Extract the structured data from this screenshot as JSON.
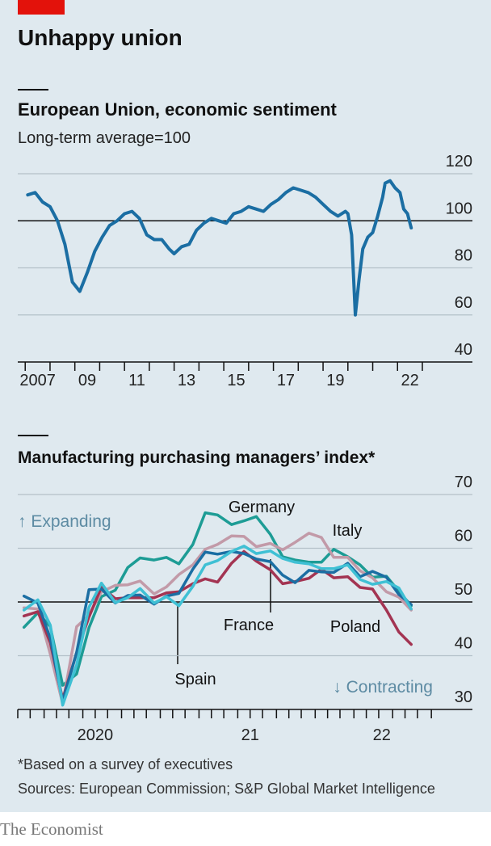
{
  "title": "Unhappy union",
  "footnote": "*Based on a survey of executives",
  "source": "Sources: European Commission; S&P Global Market Intelligence",
  "brand": "The Economist",
  "chart_data": [
    {
      "type": "line",
      "title": "European Union, economic sentiment",
      "subtitle": "Long-term average=100",
      "x": [
        2007.1,
        2007.4,
        2007.7,
        2008.0,
        2008.3,
        2008.6,
        2008.9,
        2009.2,
        2009.5,
        2009.8,
        2010.1,
        2010.4,
        2010.7,
        2011.0,
        2011.3,
        2011.6,
        2011.9,
        2012.2,
        2012.5,
        2012.8,
        2013.0,
        2013.3,
        2013.6,
        2013.9,
        2014.2,
        2014.5,
        2014.8,
        2015.1,
        2015.4,
        2015.7,
        2016.0,
        2016.3,
        2016.6,
        2016.9,
        2017.2,
        2017.5,
        2017.8,
        2018.1,
        2018.4,
        2018.7,
        2019.0,
        2019.3,
        2019.6,
        2019.9,
        2020.0,
        2020.15,
        2020.3,
        2020.45,
        2020.6,
        2020.8,
        2021.0,
        2021.2,
        2021.4,
        2021.5,
        2021.7,
        2021.9,
        2022.1,
        2022.25,
        2022.4,
        2022.55
      ],
      "values": [
        111,
        112,
        108,
        106,
        100,
        90,
        74,
        70,
        78,
        87,
        93,
        98,
        100,
        103,
        104,
        101,
        94,
        92,
        92,
        88,
        86,
        89,
        90,
        96,
        99,
        101,
        100,
        99,
        103,
        104,
        106,
        105,
        104,
        107,
        109,
        112,
        114,
        113,
        112,
        110,
        107,
        104,
        102,
        104,
        103,
        94,
        60,
        75,
        88,
        93,
        95,
        102,
        110,
        116,
        117,
        114,
        112,
        105,
        103,
        97
      ],
      "color": "#1b6ea3",
      "xlim": [
        2006.7,
        2023.0
      ],
      "ylim": [
        40,
        120
      ],
      "yticks": [
        40,
        60,
        80,
        100,
        120
      ],
      "baseline": 100,
      "xticks": [
        2007,
        2008,
        2009,
        2010,
        2011,
        2012,
        2013,
        2014,
        2015,
        2016,
        2017,
        2018,
        2019,
        2020,
        2021,
        2022,
        2023
      ],
      "xlabels": [
        {
          "value": 2007.5,
          "label": "2007"
        },
        {
          "value": 2009.5,
          "label": "09"
        },
        {
          "value": 2011.5,
          "label": "11"
        },
        {
          "value": 2013.5,
          "label": "13"
        },
        {
          "value": 2015.5,
          "label": "15"
        },
        {
          "value": 2017.5,
          "label": "17"
        },
        {
          "value": 2019.5,
          "label": "19"
        },
        {
          "value": 2022.5,
          "label": "22"
        }
      ],
      "grid": true
    },
    {
      "type": "line",
      "title": "Manufacturing purchasing managers’ index*",
      "annotations": [
        "↑ Expanding",
        "↓ Contracting"
      ],
      "x": [
        2020.04,
        2020.13,
        2020.21,
        2020.29,
        2020.38,
        2020.46,
        2020.54,
        2020.63,
        2020.71,
        2020.79,
        2020.88,
        2020.96,
        2021.04,
        2021.13,
        2021.21,
        2021.29,
        2021.38,
        2021.46,
        2021.54,
        2021.63,
        2021.71,
        2021.79,
        2021.88,
        2021.96,
        2022.04,
        2022.13,
        2022.21,
        2022.29,
        2022.38,
        2022.46,
        2022.54
      ],
      "series": [
        {
          "name": "Germany",
          "color": "#1d9c95",
          "values": [
            45.3,
            48.0,
            45.4,
            34.5,
            36.6,
            45.2,
            51.0,
            52.2,
            56.4,
            58.2,
            57.8,
            58.3,
            57.1,
            60.7,
            66.6,
            66.2,
            64.4,
            65.1,
            65.9,
            62.6,
            58.4,
            57.8,
            57.4,
            57.4,
            59.8,
            58.4,
            56.9,
            54.6,
            54.8,
            52.0,
            49.3
          ]
        },
        {
          "name": "Italy",
          "color": "#c29aa8",
          "values": [
            48.9,
            48.7,
            40.3,
            31.1,
            45.4,
            47.5,
            51.9,
            53.1,
            53.2,
            53.9,
            51.5,
            52.8,
            55.1,
            56.9,
            59.8,
            60.7,
            62.3,
            62.2,
            60.3,
            60.9,
            59.7,
            61.1,
            62.8,
            62.0,
            58.3,
            58.3,
            55.8,
            54.5,
            51.9,
            50.9,
            48.5
          ]
        },
        {
          "name": "Poland",
          "color": "#a33452",
          "values": [
            47.4,
            48.2,
            42.4,
            31.9,
            40.6,
            47.2,
            52.8,
            50.6,
            50.8,
            50.8,
            50.8,
            51.7,
            51.9,
            53.4,
            54.3,
            53.7,
            57.2,
            59.4,
            57.6,
            56.0,
            53.4,
            53.8,
            54.4,
            56.1,
            54.5,
            54.7,
            52.7,
            52.4,
            48.5,
            44.4,
            42.1
          ]
        },
        {
          "name": "France",
          "color": "#1b6ea3",
          "values": [
            51.1,
            49.8,
            43.2,
            31.5,
            40.6,
            52.3,
            52.4,
            49.8,
            51.2,
            51.3,
            49.6,
            51.1,
            51.6,
            56.1,
            59.3,
            58.9,
            59.4,
            59.0,
            58.0,
            57.5,
            55.0,
            53.6,
            55.9,
            55.6,
            55.5,
            57.2,
            54.7,
            55.7,
            54.6,
            51.4,
            49.5
          ]
        },
        {
          "name": "Spain",
          "color": "#3fc0d4",
          "values": [
            48.5,
            50.4,
            45.7,
            30.8,
            38.3,
            49.0,
            53.5,
            49.9,
            50.8,
            52.5,
            49.8,
            51.0,
            49.3,
            52.9,
            56.9,
            57.7,
            59.4,
            60.4,
            59.0,
            59.5,
            58.1,
            57.4,
            57.1,
            56.2,
            56.2,
            56.9,
            54.2,
            53.3,
            53.8,
            52.6,
            48.7
          ]
        }
      ],
      "xlim": [
        2020.0,
        2022.69
      ],
      "ylim": [
        30,
        70
      ],
      "yticks": [
        30,
        40,
        50,
        60,
        70
      ],
      "baseline": 50,
      "xticks": [
        2020.0,
        2020.08,
        2020.17,
        2020.25,
        2020.33,
        2020.42,
        2020.5,
        2020.58,
        2020.67,
        2020.75,
        2020.83,
        2020.92,
        2021.0,
        2021.08,
        2021.17,
        2021.25,
        2021.33,
        2021.42,
        2021.5,
        2021.58,
        2021.67,
        2021.75,
        2021.83,
        2021.92,
        2022.0,
        2022.08,
        2022.17,
        2022.25,
        2022.33,
        2022.42,
        2022.5,
        2022.58,
        2022.67
      ],
      "xlabels": [
        {
          "value": 2020.5,
          "label": "2020"
        },
        {
          "value": 2021.5,
          "label": "21"
        },
        {
          "value": 2022.35,
          "label": "22"
        }
      ],
      "grid": true
    }
  ]
}
